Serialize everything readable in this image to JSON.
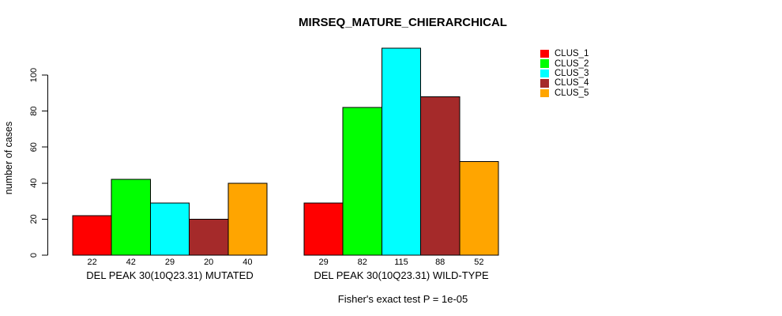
{
  "title": "MIRSEQ_MATURE_CHIERARCHICAL",
  "chart_data": {
    "type": "bar",
    "title": "MIRSEQ_MATURE_CHIERARCHICAL",
    "xlabel": "",
    "ylabel": "number of cases",
    "yticks": [
      0,
      20,
      40,
      60,
      80,
      100
    ],
    "ylim": [
      0,
      117
    ],
    "grid": false,
    "legend_position": "right-outside",
    "categories": [
      "DEL PEAK 30(10Q23.31) MUTATED",
      "DEL PEAK 30(10Q23.31) WILD-TYPE"
    ],
    "series": [
      {
        "name": "CLUS_1",
        "color": "#FF0000",
        "values": [
          22,
          29
        ]
      },
      {
        "name": "CLUS_2",
        "color": "#00FF00",
        "values": [
          42,
          82
        ]
      },
      {
        "name": "CLUS_3",
        "color": "#00FFFF",
        "values": [
          29,
          115
        ]
      },
      {
        "name": "CLUS_4",
        "color": "#A52A2A",
        "values": [
          20,
          88
        ]
      },
      {
        "name": "CLUS_5",
        "color": "#FFA500",
        "values": [
          40,
          52
        ]
      }
    ],
    "groups": [
      {
        "label": "DEL PEAK 30(10Q23.31) MUTATED",
        "values": [
          22,
          42,
          29,
          20,
          40
        ]
      },
      {
        "label": "DEL PEAK 30(10Q23.31) WILD-TYPE",
        "values": [
          29,
          82,
          115,
          88,
          52
        ]
      }
    ],
    "bar_value_labels_shown": true,
    "annotation": "Fisher's exact test P = 1e-05",
    "bar_border_color": "#000000",
    "background_color": "#FFFFFF"
  },
  "legend": {
    "items": [
      {
        "label": "CLUS_1",
        "color": "#FF0000"
      },
      {
        "label": "CLUS_2",
        "color": "#00FF00"
      },
      {
        "label": "CLUS_3",
        "color": "#00FFFF"
      },
      {
        "label": "CLUS_4",
        "color": "#A52A2A"
      },
      {
        "label": "CLUS_5",
        "color": "#FFA500"
      }
    ]
  }
}
